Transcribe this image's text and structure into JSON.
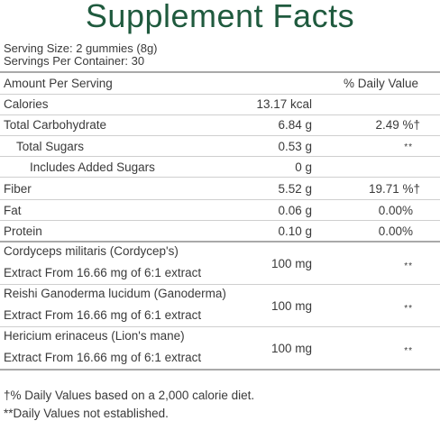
{
  "title": "Supplement Facts",
  "serving_size": "Serving Size: 2 gummies (8g)",
  "servings_per_container": "Servings Per Container: 30",
  "header": {
    "amount_per_serving": "Amount Per Serving",
    "daily_value": "% Daily Value"
  },
  "nutrients": [
    {
      "name": "Calories",
      "amount": "13.17 kcal",
      "dv": ""
    },
    {
      "name": "Total Carbohydrate",
      "amount": "6.84 g",
      "dv": "2.49 %†"
    },
    {
      "name": "Total Sugars",
      "amount": "0.53 g",
      "dv": "**"
    },
    {
      "name": "Includes Added Sugars",
      "amount": "0 g",
      "dv": ""
    },
    {
      "name": "Fiber",
      "amount": "5.52 g",
      "dv": "19.71 %†"
    },
    {
      "name": "Fat",
      "amount": "0.06 g",
      "dv": "0.00%"
    },
    {
      "name": "Protein",
      "amount": "0.10 g",
      "dv": "0.00%"
    }
  ],
  "extracts": [
    {
      "name": "Cordyceps militaris (Cordycep's)",
      "detail": "Extract From 16.66 mg of 6:1 extract",
      "amount": "100 mg",
      "dv": "**"
    },
    {
      "name": "Reishi Ganoderma lucidum (Ganoderma)",
      "detail": "Extract From 16.66 mg of 6:1 extract",
      "amount": "100 mg",
      "dv": "**"
    },
    {
      "name": "Hericium erinaceus (Lion's mane)",
      "detail": "Extract From 16.66 mg of 6:1 extract",
      "amount": "100 mg",
      "dv": "**"
    }
  ],
  "footnotes": {
    "daily_values": "†% Daily Values based on a 2,000 calorie diet.",
    "not_established": "**Daily Values not established."
  }
}
